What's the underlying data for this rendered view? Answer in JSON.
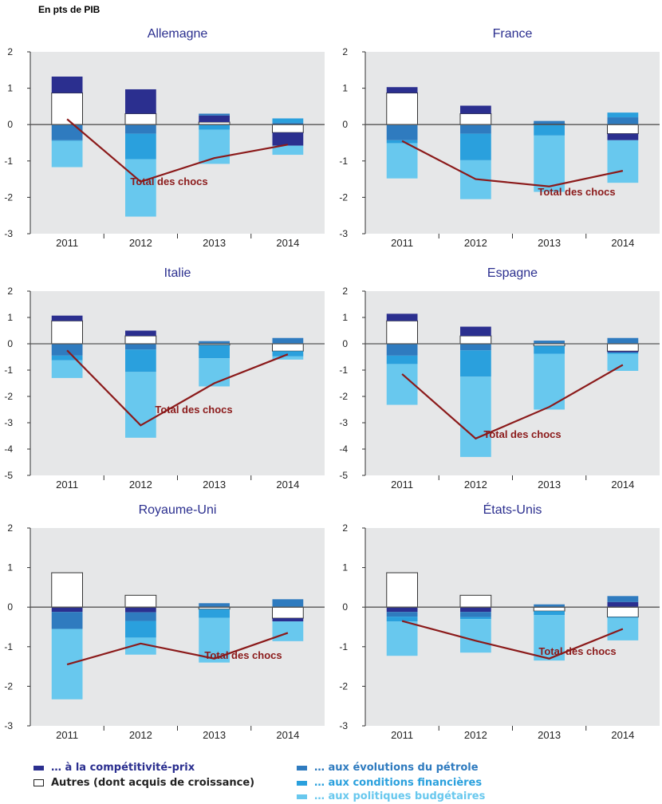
{
  "unit_label": "En pts de PIB",
  "colors": {
    "competitivite": "#2b2f8f",
    "autres_fill": "#ffffff",
    "autres_stroke": "#333333",
    "petrole": "#2f7bbf",
    "financieres": "#2aa0dd",
    "budgetaires": "#68c8ee",
    "total": "#8b1a1a",
    "plot_bg": "#e6e7e8"
  },
  "legend": [
    {
      "key": "competitivite",
      "label": "… à la compétitivité-prix",
      "color": "#2b2f8f",
      "text_color": "#2b2f8f"
    },
    {
      "key": "autres",
      "label": "Autres (dont acquis de croissance)",
      "color": "#ffffff",
      "text_color": "#222222"
    },
    {
      "key": "petrole",
      "label": "… aux évolutions du pétrole",
      "color": "#2f7bbf",
      "text_color": "#2f7bbf"
    },
    {
      "key": "financieres",
      "label": "… aux conditions financières",
      "color": "#2aa0dd",
      "text_color": "#2aa0dd"
    },
    {
      "key": "budgetaires",
      "label": "… aux politiques budgétaires",
      "color": "#68c8ee",
      "text_color": "#68c8ee"
    }
  ],
  "chart_data": [
    {
      "type": "bar",
      "title": "Allemagne",
      "categories": [
        "2011",
        "2012",
        "2013",
        "2014"
      ],
      "ylim": [
        -3,
        2
      ],
      "yticks": [
        2,
        1,
        0,
        -1,
        -2,
        -3
      ],
      "series": [
        {
          "name": "Autres (dont acquis de croissance)",
          "values": [
            0.87,
            0.3,
            0.07,
            -0.22
          ]
        },
        {
          "name": "… à la compétitivité-prix",
          "values": [
            0.45,
            0.67,
            0.18,
            -0.36
          ]
        },
        {
          "name": "… aux évolutions du pétrole",
          "values": [
            -0.43,
            -0.25,
            0.05,
            0.05
          ]
        },
        {
          "name": "… aux conditions financières",
          "values": [
            -0.02,
            -0.7,
            -0.14,
            0.12
          ]
        },
        {
          "name": "… aux politiques budgétaires",
          "values": [
            -0.72,
            -1.58,
            -0.94,
            -0.25
          ]
        }
      ],
      "total": {
        "name": "Total des chocs",
        "values": [
          0.15,
          -1.57,
          -0.92,
          -0.55
        ]
      },
      "total_label": "Total des chocs"
    },
    {
      "type": "bar",
      "title": "France",
      "categories": [
        "2011",
        "2012",
        "2013",
        "2014"
      ],
      "ylim": [
        -3,
        2
      ],
      "yticks": [
        2,
        1,
        0,
        -1,
        -2,
        -3
      ],
      "series": [
        {
          "name": "Autres (dont acquis de croissance)",
          "values": [
            0.87,
            0.3,
            0.02,
            -0.25
          ]
        },
        {
          "name": "… à la compétitivité-prix",
          "values": [
            0.16,
            0.22,
            0.0,
            -0.18
          ]
        },
        {
          "name": "… aux évolutions du pétrole",
          "values": [
            -0.43,
            -0.25,
            0.08,
            0.2
          ]
        },
        {
          "name": "… aux conditions financières",
          "values": [
            -0.08,
            -0.73,
            -0.3,
            0.13
          ]
        },
        {
          "name": "… aux politiques budgétaires",
          "values": [
            -0.97,
            -1.07,
            -1.55,
            -1.17
          ]
        }
      ],
      "total": {
        "name": "Total des chocs",
        "values": [
          -0.45,
          -1.5,
          -1.7,
          -1.27
        ]
      },
      "total_label": "Total des chocs"
    },
    {
      "type": "bar",
      "title": "Italie",
      "categories": [
        "2011",
        "2012",
        "2013",
        "2014"
      ],
      "ylim": [
        -5,
        2
      ],
      "yticks": [
        2,
        1,
        0,
        -1,
        -2,
        -3,
        -4,
        -5
      ],
      "series": [
        {
          "name": "Autres (dont acquis de croissance)",
          "values": [
            0.87,
            0.3,
            -0.05,
            -0.28
          ]
        },
        {
          "name": "… à la compétitivité-prix",
          "values": [
            0.2,
            0.2,
            0.0,
            0.0
          ]
        },
        {
          "name": "… aux évolutions du pétrole",
          "values": [
            -0.45,
            -0.22,
            0.1,
            0.22
          ]
        },
        {
          "name": "… aux conditions financières",
          "values": [
            -0.18,
            -0.85,
            -0.5,
            -0.2
          ]
        },
        {
          "name": "… aux politiques budgétaires",
          "values": [
            -0.67,
            -2.5,
            -1.07,
            -0.12
          ]
        }
      ],
      "total": {
        "name": "Total des chocs",
        "values": [
          -0.25,
          -3.1,
          -1.5,
          -0.4
        ]
      },
      "total_label": "Total des chocs"
    },
    {
      "type": "bar",
      "title": "Espagne",
      "categories": [
        "2011",
        "2012",
        "2013",
        "2014"
      ],
      "ylim": [
        -5,
        2
      ],
      "yticks": [
        2,
        1,
        0,
        -1,
        -2,
        -3,
        -4,
        -5
      ],
      "series": [
        {
          "name": "Autres (dont acquis de croissance)",
          "values": [
            0.87,
            0.3,
            -0.08,
            -0.28
          ]
        },
        {
          "name": "… à la compétitivité-prix",
          "values": [
            0.27,
            0.35,
            0.0,
            -0.05
          ]
        },
        {
          "name": "… aux évolutions du pétrole",
          "values": [
            -0.45,
            -0.25,
            0.12,
            0.22
          ]
        },
        {
          "name": "… aux conditions financières",
          "values": [
            -0.32,
            -1.0,
            -0.3,
            -0.05
          ]
        },
        {
          "name": "… aux politiques budgétaires",
          "values": [
            -1.55,
            -3.05,
            -2.12,
            -0.65
          ]
        }
      ],
      "total": {
        "name": "Total des chocs",
        "values": [
          -1.15,
          -3.6,
          -2.4,
          -0.8
        ]
      },
      "total_label": "Total des chocs"
    },
    {
      "type": "bar",
      "title": "Royaume-Uni",
      "categories": [
        "2011",
        "2012",
        "2013",
        "2014"
      ],
      "ylim": [
        -3,
        2
      ],
      "yticks": [
        2,
        1,
        0,
        -1,
        -2,
        -3
      ],
      "series": [
        {
          "name": "Autres (dont acquis de croissance)",
          "values": [
            0.87,
            0.3,
            -0.05,
            -0.28
          ]
        },
        {
          "name": "… à la compétitivité-prix",
          "values": [
            -0.12,
            -0.13,
            0.0,
            -0.08
          ]
        },
        {
          "name": "… aux évolutions du pétrole",
          "values": [
            -0.43,
            -0.22,
            0.1,
            0.2
          ]
        },
        {
          "name": "… aux conditions financières",
          "values": [
            0.0,
            -0.42,
            -0.22,
            0.0
          ]
        },
        {
          "name": "… aux politiques budgétaires",
          "values": [
            -1.78,
            -0.43,
            -1.13,
            -0.5
          ]
        }
      ],
      "total": {
        "name": "Total des chocs",
        "values": [
          -1.45,
          -0.92,
          -1.3,
          -0.65
        ]
      },
      "total_label": "Total des chocs"
    },
    {
      "type": "bar",
      "title": "États-Unis",
      "categories": [
        "2011",
        "2012",
        "2013",
        "2014"
      ],
      "ylim": [
        -3,
        2
      ],
      "yticks": [
        2,
        1,
        0,
        -1,
        -2,
        -3
      ],
      "series": [
        {
          "name": "Autres (dont acquis de croissance)",
          "values": [
            0.87,
            0.3,
            -0.1,
            -0.25
          ]
        },
        {
          "name": "… à la compétitivité-prix",
          "values": [
            -0.12,
            -0.12,
            0.0,
            0.13
          ]
        },
        {
          "name": "… aux évolutions du pétrole",
          "values": [
            -0.12,
            -0.13,
            0.07,
            0.15
          ]
        },
        {
          "name": "… aux conditions financières",
          "values": [
            -0.12,
            -0.05,
            -0.1,
            -0.02
          ]
        },
        {
          "name": "… aux politiques budgétaires",
          "values": [
            -0.87,
            -0.85,
            -1.15,
            -0.57
          ]
        }
      ],
      "total": {
        "name": "Total des chocs",
        "values": [
          -0.35,
          -0.85,
          -1.3,
          -0.55
        ]
      },
      "total_label": "Total des chocs"
    }
  ]
}
